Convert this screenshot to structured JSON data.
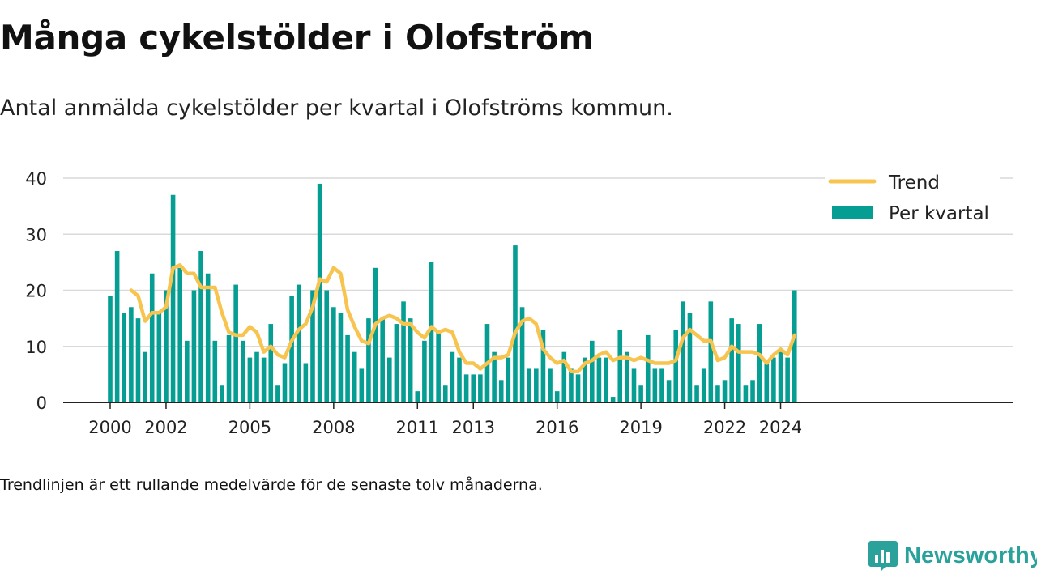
{
  "header": {
    "title": "Många cykelstölder i Olofström",
    "subtitle": "Antal anmälda cykelstölder per kvartal i Olofströms kommun."
  },
  "footer": {
    "note": "Trendlinjen är ett rullande medelvärde för de senaste tolv månaderna.",
    "brand": "Newsworthy"
  },
  "colors": {
    "bars": "#069e93",
    "trend": "#f7c44f",
    "grid": "#d9d9d9",
    "axis": "#222222",
    "brand": "#2aa29b"
  },
  "icons": {
    "logo": "bar-chart-logo-icon"
  },
  "chart_data": {
    "type": "bar",
    "title": "Många cykelstölder i Olofström",
    "xlabel": "",
    "ylabel": "",
    "ylim": [
      0,
      40
    ],
    "yticks": [
      0,
      10,
      20,
      30,
      40
    ],
    "xticks": [
      "2000",
      "2002",
      "2005",
      "2008",
      "2011",
      "2013",
      "2016",
      "2019",
      "2022",
      "2024"
    ],
    "start_year": 2000,
    "grid": true,
    "legend_position": "top-right",
    "series": [
      {
        "name": "Per kvartal",
        "type": "bar",
        "values": [
          19,
          27,
          16,
          17,
          15,
          9,
          23,
          16,
          20,
          37,
          24,
          11,
          20,
          27,
          23,
          11,
          3,
          12,
          21,
          11,
          8,
          9,
          8,
          14,
          3,
          7,
          19,
          21,
          7,
          20,
          39,
          20,
          17,
          16,
          12,
          9,
          6,
          15,
          24,
          15,
          8,
          14,
          18,
          15,
          2,
          11,
          25,
          13,
          3,
          9,
          8,
          5,
          5,
          5,
          14,
          9,
          4,
          8,
          28,
          17,
          6,
          6,
          13,
          6,
          2,
          9,
          6,
          5,
          8,
          11,
          8,
          8,
          1,
          13,
          9,
          6,
          3,
          12,
          6,
          6,
          4,
          13,
          18,
          16,
          3,
          6,
          18,
          3,
          4,
          15,
          14,
          3,
          4,
          14,
          7,
          8,
          9,
          8,
          20
        ]
      },
      {
        "name": "Trend",
        "type": "line",
        "values": [
          null,
          null,
          null,
          20,
          19,
          14.5,
          16,
          16,
          17,
          24,
          24.5,
          23,
          23,
          20.5,
          20.5,
          20.5,
          16,
          12.5,
          12,
          12,
          13.5,
          12.5,
          9,
          10,
          8.5,
          8,
          11,
          13,
          14,
          17,
          22,
          21.5,
          24,
          23,
          16.5,
          13.5,
          11,
          10.5,
          14,
          15,
          15.5,
          15,
          14,
          14,
          12.5,
          11.5,
          13.5,
          12.5,
          13,
          12.5,
          9,
          7,
          7,
          6,
          7,
          8,
          8,
          8.5,
          12.5,
          14.5,
          15,
          14,
          9.5,
          8,
          7,
          7.5,
          5.5,
          5.5,
          7,
          7.5,
          8.5,
          9,
          7.5,
          8,
          8,
          7.5,
          8,
          7.5,
          7,
          7,
          7,
          7.5,
          11.5,
          13,
          12,
          11,
          11,
          7.5,
          8,
          10,
          9,
          9,
          9,
          8.5,
          7,
          8.5,
          9.5,
          8.5,
          12
        ]
      }
    ]
  }
}
